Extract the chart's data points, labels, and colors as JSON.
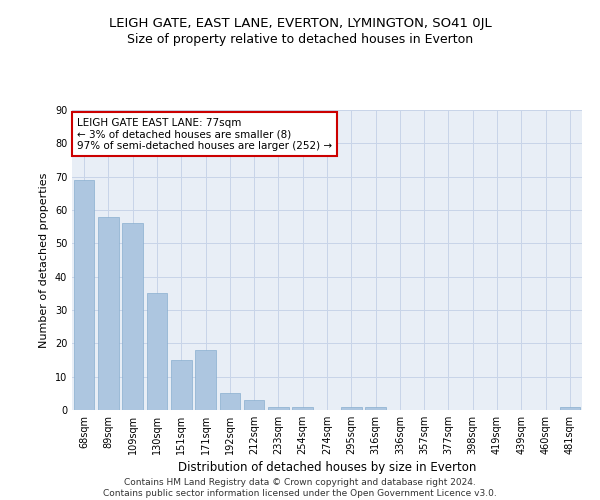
{
  "title": "LEIGH GATE, EAST LANE, EVERTON, LYMINGTON, SO41 0JL",
  "subtitle": "Size of property relative to detached houses in Everton",
  "xlabel": "Distribution of detached houses by size in Everton",
  "ylabel": "Number of detached properties",
  "categories": [
    "68sqm",
    "89sqm",
    "109sqm",
    "130sqm",
    "151sqm",
    "171sqm",
    "192sqm",
    "212sqm",
    "233sqm",
    "254sqm",
    "274sqm",
    "295sqm",
    "316sqm",
    "336sqm",
    "357sqm",
    "377sqm",
    "398sqm",
    "419sqm",
    "439sqm",
    "460sqm",
    "481sqm"
  ],
  "values": [
    69,
    58,
    56,
    35,
    15,
    18,
    5,
    3,
    1,
    1,
    0,
    1,
    1,
    0,
    0,
    0,
    0,
    0,
    0,
    0,
    1
  ],
  "bar_color": "#adc6e0",
  "bar_edge_color": "#88aecf",
  "highlight_color": "#cc0000",
  "annotation_text": "LEIGH GATE EAST LANE: 77sqm\n← 3% of detached houses are smaller (8)\n97% of semi-detached houses are larger (252) →",
  "annotation_box_color": "#ffffff",
  "annotation_box_edge_color": "#cc0000",
  "ylim": [
    0,
    90
  ],
  "yticks": [
    0,
    10,
    20,
    30,
    40,
    50,
    60,
    70,
    80,
    90
  ],
  "grid_color": "#c8d4e8",
  "background_color": "#e8eef6",
  "footer_line1": "Contains HM Land Registry data © Crown copyright and database right 2024.",
  "footer_line2": "Contains public sector information licensed under the Open Government Licence v3.0.",
  "title_fontsize": 9.5,
  "subtitle_fontsize": 9,
  "xlabel_fontsize": 8.5,
  "ylabel_fontsize": 8,
  "tick_fontsize": 7,
  "annotation_fontsize": 7.5,
  "footer_fontsize": 6.5
}
